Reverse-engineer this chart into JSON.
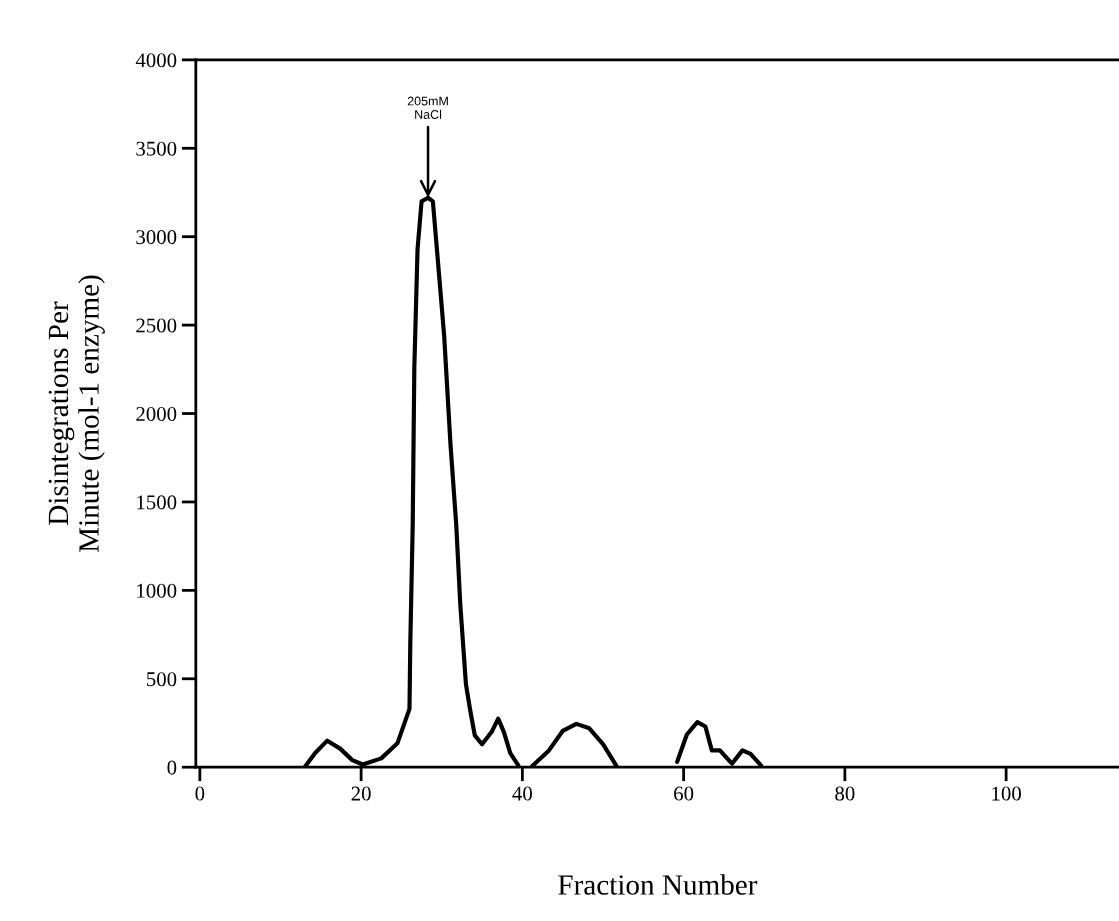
{
  "chart_data": {
    "type": "line",
    "xlabel": "Fraction Number",
    "ylabel": "Disintegrations Per\nMinute (mol-1 enzyme)",
    "series": [
      {
        "color": "#000000",
        "x": [
          13.0,
          14.3,
          15.8,
          17.4,
          18.9,
          20.2,
          22.5,
          24.5,
          26.0,
          26.1,
          26.4,
          26.6,
          27.0,
          27.5,
          28.3,
          28.9,
          29.4,
          30.3,
          31.1,
          31.8,
          32.3,
          33.0,
          33.5,
          34.1,
          35.0,
          36.2,
          37.0,
          37.7,
          38.5,
          39.5,
          40.3,
          41.2,
          43.3,
          45.0,
          46.7,
          48.3,
          50.0,
          51.7,
          55.0,
          59.2,
          60.4,
          61.7,
          62.7,
          63.5,
          64.5,
          66.0,
          67.3,
          68.3,
          69.6
        ],
        "values": [
          0,
          80,
          150,
          105,
          40,
          15,
          50,
          135,
          330,
          700,
          1370,
          2260,
          2930,
          3200,
          3220,
          3200,
          2930,
          2440,
          1815,
          1370,
          920,
          470,
          330,
          180,
          130,
          200,
          275,
          200,
          80,
          10,
          null,
          5,
          95,
          205,
          245,
          220,
          130,
          5,
          null,
          30,
          185,
          255,
          230,
          95,
          95,
          20,
          95,
          75,
          10
        ]
      }
    ],
    "xlim": [
      -0.5,
      114
    ],
    "ylim": [
      0,
      4000
    ],
    "xticks": [
      0,
      20,
      40,
      60,
      80,
      100
    ],
    "yticks": [
      0,
      500,
      1000,
      1500,
      2000,
      2500,
      3000,
      3500,
      4000
    ],
    "annotations": [
      {
        "text": "205mM\nNaCl",
        "x": 28.3,
        "y": 3220
      }
    ],
    "grid": false,
    "legend": false,
    "line_style": "solid",
    "marker": "none"
  }
}
